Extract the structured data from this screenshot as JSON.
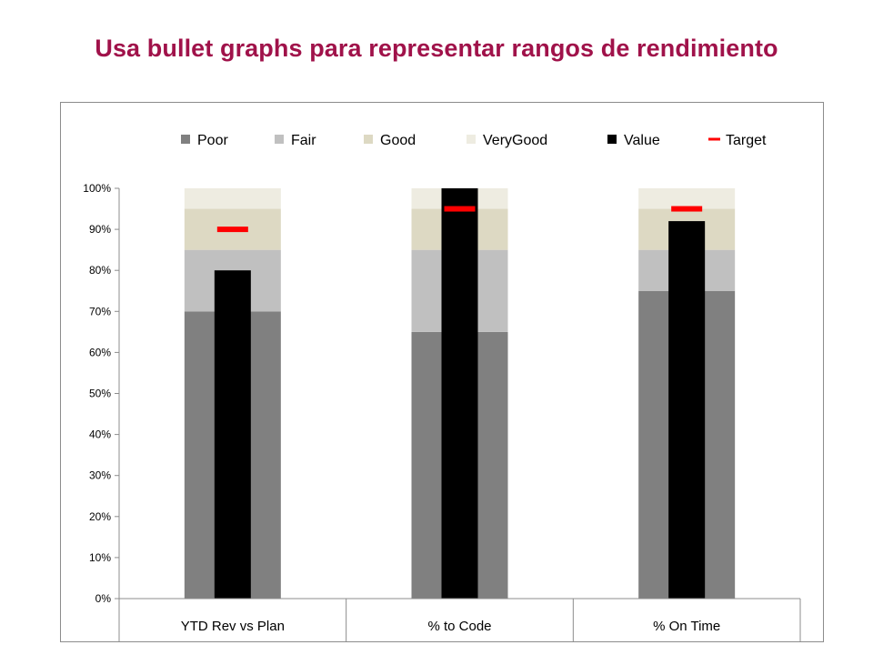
{
  "slide": {
    "title": "Usa bullet graphs para representar rangos de rendimiento"
  },
  "chart_data": {
    "type": "bar",
    "subtype": "bullet",
    "categories": [
      "YTD Rev vs Plan",
      "% to Code",
      "% On Time"
    ],
    "ylim": [
      0,
      100
    ],
    "yticks": [
      "0%",
      "10%",
      "20%",
      "30%",
      "40%",
      "50%",
      "60%",
      "70%",
      "80%",
      "90%",
      "100%"
    ],
    "tick_values": [
      0,
      10,
      20,
      30,
      40,
      50,
      60,
      70,
      80,
      90,
      100
    ],
    "legend_position": "top",
    "grid": false,
    "bands": [
      {
        "name": "Poor",
        "color": "#808080",
        "values": [
          70,
          65,
          75
        ]
      },
      {
        "name": "Fair",
        "color": "#c0c0c0",
        "values": [
          15,
          20,
          10
        ]
      },
      {
        "name": "Good",
        "color": "#ddd9c3",
        "values": [
          10,
          10,
          10
        ]
      },
      {
        "name": "VeryGood",
        "color": "#eeece1",
        "values": [
          5,
          5,
          5
        ]
      }
    ],
    "value": {
      "name": "Value",
      "color": "#000000",
      "values": [
        80,
        100,
        92
      ]
    },
    "target": {
      "name": "Target",
      "color": "#ff0000",
      "values": [
        90,
        95,
        95
      ]
    }
  }
}
